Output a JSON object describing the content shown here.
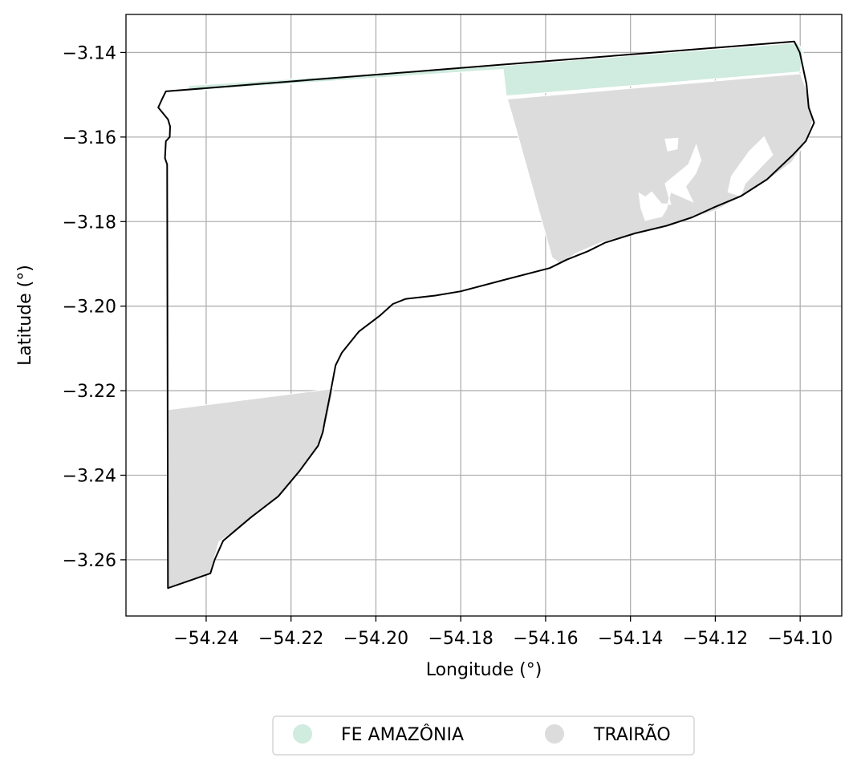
{
  "chart_data": {
    "type": "map",
    "xlabel": "Longitude (°)",
    "ylabel": "Latitude (°)",
    "xlim": [
      -54.2589,
      -54.0902
    ],
    "ylim": [
      -3.2733,
      -3.131
    ],
    "grid": true,
    "x_ticks": [
      -54.24,
      -54.22,
      -54.2,
      -54.18,
      -54.16,
      -54.14,
      -54.12,
      -54.1
    ],
    "y_ticks": [
      -3.14,
      -3.16,
      -3.18,
      -3.2,
      -3.22,
      -3.24,
      -3.26
    ],
    "x_tick_labels": [
      "−54.24",
      "−54.22",
      "−54.20",
      "−54.18",
      "−54.16",
      "−54.14",
      "−54.12",
      "−54.10"
    ],
    "y_tick_labels": [
      "−3.14",
      "−3.16",
      "−3.18",
      "−3.20",
      "−3.22",
      "−3.24",
      "−3.26"
    ],
    "legend": {
      "placement": "bottom-center, below plot",
      "entries": [
        {
          "label": "FE AMAZÔNIA",
          "color": "#d0ebdf"
        },
        {
          "label": "TRAIRÃO",
          "color": "#dcdcdc"
        }
      ]
    },
    "layers": [
      {
        "name": "FE AMAZÔNIA",
        "color": "#d0ebdf",
        "polygons": [
          [
            [
              -54.2452,
              -3.1512
            ],
            [
              -54.2444,
              -3.1491
            ],
            [
              -54.17,
              -3.144
            ],
            [
              -54.1693,
              -3.1503
            ],
            [
              -54.1,
              -3.1446
            ],
            [
              -54.0993,
              -3.14
            ],
            [
              -54.1005,
              -3.1377
            ],
            [
              -54.17,
              -3.1431
            ],
            [
              -54.244,
              -3.1478
            ]
          ]
        ]
      },
      {
        "name": "TRAIRÃO",
        "color": "#dcdcdc",
        "polygons": [
          [
            [
              -54.169,
              -3.151
            ],
            [
              -54.0999,
              -3.145
            ],
            [
              -54.0985,
              -3.149
            ],
            [
              -54.097,
              -3.156
            ],
            [
              -54.0985,
              -3.161
            ],
            [
              -54.102,
              -3.166
            ],
            [
              -54.108,
              -3.1705
            ],
            [
              -54.114,
              -3.1742
            ],
            [
              -54.12,
              -3.1774
            ],
            [
              -54.128,
              -3.18
            ],
            [
              -54.138,
              -3.1826
            ],
            [
              -54.147,
              -3.185
            ],
            [
              -54.153,
              -3.1876
            ],
            [
              -54.1565,
              -3.19
            ],
            [
              -54.1585,
              -3.1885
            ],
            [
              -54.162,
              -3.176
            ],
            [
              -54.167,
              -3.158
            ]
          ],
          [
            [
              -54.249,
              -3.2245
            ],
            [
              -54.21,
              -3.2195
            ],
            [
              -54.2115,
              -3.227
            ],
            [
              -54.2135,
              -3.233
            ],
            [
              -54.218,
              -3.239
            ],
            [
              -54.223,
              -3.245
            ],
            [
              -54.229,
              -3.25
            ],
            [
              -54.233,
              -3.253
            ],
            [
              -54.237,
              -3.2558
            ],
            [
              -54.239,
              -3.263
            ],
            [
              -54.244,
              -3.265
            ],
            [
              -54.249,
              -3.2665
            ]
          ]
        ],
        "holes": [
          [
            [
              -54.1327,
              -3.1758
            ],
            [
              -54.1305,
              -3.1759
            ],
            [
              -54.1318,
              -3.171
            ],
            [
              -54.1263,
              -3.1665
            ],
            [
              -54.1245,
              -3.1619
            ],
            [
              -54.1234,
              -3.1655
            ],
            [
              -54.1247,
              -3.1687
            ],
            [
              -54.127,
              -3.1717
            ],
            [
              -54.1253,
              -3.1753
            ],
            [
              -54.1305,
              -3.173
            ],
            [
              -54.1315,
              -3.177
            ],
            [
              -54.1326,
              -3.1788
            ],
            [
              -54.1365,
              -3.1797
            ],
            [
              -54.1375,
              -3.1769
            ],
            [
              -54.138,
              -3.1733
            ],
            [
              -54.1365,
              -3.1742
            ],
            [
              -54.135,
              -3.173
            ]
          ],
          [
            [
              -54.113,
              -3.171
            ],
            [
              -54.1065,
              -3.1642
            ],
            [
              -54.1085,
              -3.16
            ],
            [
              -54.112,
              -3.1634
            ],
            [
              -54.1162,
              -3.1693
            ],
            [
              -54.117,
              -3.173
            ],
            [
              -54.114,
              -3.174
            ]
          ],
          [
            [
              -54.1318,
              -3.1605
            ],
            [
              -54.1288,
              -3.1603
            ],
            [
              -54.129,
              -3.1628
            ],
            [
              -54.1312,
              -3.1633
            ]
          ]
        ]
      }
    ],
    "boundary": [
      [
        -54.2495,
        -3.1492
      ],
      [
        -54.1014,
        -3.1374
      ],
      [
        -54.1001,
        -3.14
      ],
      [
        -54.0985,
        -3.1475
      ],
      [
        -54.098,
        -3.153
      ],
      [
        -54.0967,
        -3.1566
      ],
      [
        -54.0987,
        -3.161
      ],
      [
        -54.1018,
        -3.1643
      ],
      [
        -54.1078,
        -3.17
      ],
      [
        -54.114,
        -3.174
      ],
      [
        -54.12,
        -3.1765
      ],
      [
        -54.1255,
        -3.179
      ],
      [
        -54.1315,
        -3.181
      ],
      [
        -54.139,
        -3.1828
      ],
      [
        -54.146,
        -3.185
      ],
      [
        -54.15,
        -3.187
      ],
      [
        -54.155,
        -3.189
      ],
      [
        -54.159,
        -3.191
      ],
      [
        -54.169,
        -3.1936
      ],
      [
        -54.18,
        -3.1965
      ],
      [
        -54.186,
        -3.1975
      ],
      [
        -54.193,
        -3.1983
      ],
      [
        -54.196,
        -3.1995
      ],
      [
        -54.199,
        -3.2022
      ],
      [
        -54.204,
        -3.206
      ],
      [
        -54.208,
        -3.211
      ],
      [
        -54.2095,
        -3.214
      ],
      [
        -54.211,
        -3.222
      ],
      [
        -54.212,
        -3.227
      ],
      [
        -54.2125,
        -3.2298
      ],
      [
        -54.2136,
        -3.233
      ],
      [
        -54.218,
        -3.239
      ],
      [
        -54.223,
        -3.245
      ],
      [
        -54.2295,
        -3.25
      ],
      [
        -54.236,
        -3.2555
      ],
      [
        -54.238,
        -3.26
      ],
      [
        -54.239,
        -3.2632
      ],
      [
        -54.2435,
        -3.2648
      ],
      [
        -54.249,
        -3.2667
      ],
      [
        -54.2492,
        -3.1665
      ],
      [
        -54.2497,
        -3.165
      ],
      [
        -54.2495,
        -3.161
      ],
      [
        -54.2486,
        -3.16
      ],
      [
        -54.2485,
        -3.1575
      ],
      [
        -54.249,
        -3.1558
      ],
      [
        -54.2513,
        -3.153
      ],
      [
        -54.2503,
        -3.1508
      ]
    ]
  }
}
